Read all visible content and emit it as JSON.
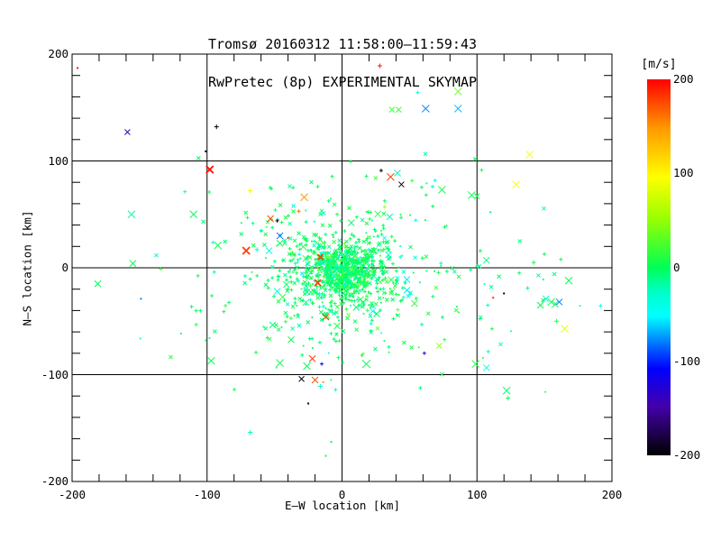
{
  "chart_data": {
    "type": "scatter",
    "title": "Tromsø 20160312 11:58:00–11:59:43",
    "subtitle": "RwPretec (8p) EXPERIMENTAL SKYMAP",
    "xlabel": "E–W location [km]",
    "ylabel": "N–S location [km]",
    "xlim": [
      -200,
      200
    ],
    "ylim": [
      -200,
      200
    ],
    "xticks": [
      -200,
      -100,
      0,
      100,
      200
    ],
    "yticks": [
      -200,
      -100,
      0,
      100,
      200
    ],
    "minor_tick_step": 20,
    "grid_values": [
      -100,
      0,
      100
    ],
    "grid_on": true,
    "background": "#ffffff",
    "axis_color": "#000000",
    "colorbar": {
      "label": "[m/s]",
      "ticks": [
        200,
        100,
        0,
        -100,
        -200
      ],
      "min": -200,
      "max": 200,
      "gradient_stops": [
        {
          "pos": 0.0,
          "color": "#ff0000"
        },
        {
          "pos": 0.13,
          "color": "#ff9900"
        },
        {
          "pos": 0.26,
          "color": "#ffff00"
        },
        {
          "pos": 0.37,
          "color": "#99ff00"
        },
        {
          "pos": 0.5,
          "color": "#00ff55"
        },
        {
          "pos": 0.57,
          "color": "#00ffcc"
        },
        {
          "pos": 0.63,
          "color": "#00ffff"
        },
        {
          "pos": 0.72,
          "color": "#0055ff"
        },
        {
          "pos": 0.77,
          "color": "#0000ff"
        },
        {
          "pos": 0.87,
          "color": "#4400aa"
        },
        {
          "pos": 1.0,
          "color": "#000000"
        }
      ]
    },
    "notable_points": [
      {
        "x": -196,
        "y": 187,
        "v": 190,
        "m": ".",
        "s": 1
      },
      {
        "x": -159,
        "y": 127,
        "v": -150,
        "m": "x",
        "s": 3
      },
      {
        "x": -93,
        "y": 132,
        "v": -200,
        "m": "+",
        "s": 2.5
      },
      {
        "x": -101,
        "y": 109,
        "v": -200,
        "m": ".",
        "s": 1
      },
      {
        "x": -98,
        "y": 92,
        "v": 195,
        "m": "x",
        "s": 4,
        "b": 1
      },
      {
        "x": 28,
        "y": 189,
        "v": 190,
        "m": "+",
        "s": 2.5
      },
      {
        "x": 86,
        "y": 165,
        "v": 45,
        "m": "x",
        "s": 4
      },
      {
        "x": 62,
        "y": 149,
        "v": -85,
        "m": "x",
        "s": 4
      },
      {
        "x": 86,
        "y": 149,
        "v": -70,
        "m": "x",
        "s": 4
      },
      {
        "x": 37,
        "y": 148,
        "v": 25,
        "m": "x",
        "s": 3
      },
      {
        "x": 42,
        "y": 148,
        "v": 25,
        "m": "x",
        "s": 3
      },
      {
        "x": 56,
        "y": 164,
        "v": -35,
        "m": "+",
        "s": 2
      },
      {
        "x": 110,
        "y": 52,
        "v": -5,
        "m": ".",
        "s": 1
      },
      {
        "x": 139,
        "y": 106,
        "v": 100,
        "m": "x",
        "s": 4
      },
      {
        "x": 129,
        "y": 78,
        "v": 95,
        "m": "x",
        "s": 4
      },
      {
        "x": 36,
        "y": 85,
        "v": 175,
        "m": "x",
        "s": 4
      },
      {
        "x": 44,
        "y": 78,
        "v": -195,
        "m": "x",
        "s": 3
      },
      {
        "x": 29,
        "y": 91,
        "v": -195,
        "m": "+",
        "s": 2
      },
      {
        "x": 74,
        "y": 73,
        "v": 10,
        "m": "x",
        "s": 4
      },
      {
        "x": 96,
        "y": 68,
        "v": 5,
        "m": "x",
        "s": 4
      },
      {
        "x": 100,
        "y": 67,
        "v": 10,
        "m": "x",
        "s": 3
      },
      {
        "x": -68,
        "y": 72,
        "v": 105,
        "m": "+",
        "s": 2.5
      },
      {
        "x": -53,
        "y": 46,
        "v": 170,
        "m": "x",
        "s": 3.5
      },
      {
        "x": -48,
        "y": 44,
        "v": -195,
        "m": "+",
        "s": 2
      },
      {
        "x": -71,
        "y": 16,
        "v": 175,
        "m": "x",
        "s": 4,
        "b": 1
      },
      {
        "x": -63,
        "y": 17,
        "v": -35,
        "m": "+",
        "s": 2.5
      },
      {
        "x": -54,
        "y": 16,
        "v": -40,
        "m": "x",
        "s": 3.5
      },
      {
        "x": -156,
        "y": 50,
        "v": -20,
        "m": "x",
        "s": 4
      },
      {
        "x": -110,
        "y": 50,
        "v": 0,
        "m": "x",
        "s": 4
      },
      {
        "x": -92,
        "y": 21,
        "v": 5,
        "m": "x",
        "s": 4
      },
      {
        "x": -155,
        "y": 4,
        "v": 0,
        "m": "x",
        "s": 3.5
      },
      {
        "x": -181,
        "y": -15,
        "v": 0,
        "m": "x",
        "s": 3.5
      },
      {
        "x": -149,
        "y": -29,
        "v": -80,
        "m": ".",
        "s": 1
      },
      {
        "x": -28,
        "y": 66,
        "v": 140,
        "m": "x",
        "s": 4
      },
      {
        "x": -18,
        "y": 76,
        "v": 10,
        "m": "+",
        "s": 2
      },
      {
        "x": -32,
        "y": 53,
        "v": 155,
        "m": "+",
        "s": 2
      },
      {
        "x": -46,
        "y": 30,
        "v": -90,
        "m": "x",
        "s": 3.5
      },
      {
        "x": -40,
        "y": 28,
        "v": 180,
        "m": ".",
        "s": 1
      },
      {
        "x": -46,
        "y": 23,
        "v": 5,
        "m": "x",
        "s": 3.5
      },
      {
        "x": -48,
        "y": -22,
        "v": -40,
        "m": "x",
        "s": 3.5
      },
      {
        "x": -18,
        "y": -14,
        "v": 175,
        "m": "x",
        "s": 3.5,
        "b": 1
      },
      {
        "x": -16,
        "y": 10,
        "v": 175,
        "m": "x",
        "s": 3,
        "b": 1
      },
      {
        "x": -12,
        "y": -46,
        "v": 175,
        "m": "x",
        "s": 3.5
      },
      {
        "x": 48,
        "y": -11,
        "v": -55,
        "m": "x",
        "s": 3.5
      },
      {
        "x": -97,
        "y": -87,
        "v": 0,
        "m": "x",
        "s": 4
      },
      {
        "x": -46,
        "y": -89,
        "v": 5,
        "m": "x",
        "s": 4
      },
      {
        "x": -26,
        "y": -92,
        "v": 0,
        "m": "x",
        "s": 4
      },
      {
        "x": -22,
        "y": -85,
        "v": 175,
        "m": "x",
        "s": 3.5
      },
      {
        "x": -15,
        "y": -90,
        "v": -130,
        "m": "+",
        "s": 2
      },
      {
        "x": 18,
        "y": -90,
        "v": 5,
        "m": "x",
        "s": 4.5
      },
      {
        "x": 61,
        "y": -80,
        "v": -140,
        "m": "+",
        "s": 2
      },
      {
        "x": 72,
        "y": -73,
        "v": 60,
        "m": "x",
        "s": 3
      },
      {
        "x": -30,
        "y": -104,
        "v": -195,
        "m": "x",
        "s": 3
      },
      {
        "x": -20,
        "y": -105,
        "v": 175,
        "m": "x",
        "s": 3.5
      },
      {
        "x": -14,
        "y": -107,
        "v": 140,
        "m": ".",
        "s": 1
      },
      {
        "x": -16,
        "y": -111,
        "v": -35,
        "m": "+",
        "s": 2.5
      },
      {
        "x": -25,
        "y": -127,
        "v": -195,
        "m": ".",
        "s": 1
      },
      {
        "x": -68,
        "y": -154,
        "v": -30,
        "m": "+",
        "s": 2.5
      },
      {
        "x": -8,
        "y": -163,
        "v": 0,
        "m": ".",
        "s": 1
      },
      {
        "x": -12,
        "y": -176,
        "v": 5,
        "m": ".",
        "s": 1
      },
      {
        "x": 112,
        "y": -28,
        "v": 180,
        "m": ".",
        "s": 1
      },
      {
        "x": 120,
        "y": -24,
        "v": -195,
        "m": ".",
        "s": 1
      },
      {
        "x": 108,
        "y": -35,
        "v": -30,
        "m": "+",
        "s": 2
      },
      {
        "x": 107,
        "y": 7,
        "v": -15,
        "m": "x",
        "s": 3.5
      },
      {
        "x": 142,
        "y": 5,
        "v": 5,
        "m": "+",
        "s": 2.5
      },
      {
        "x": 168,
        "y": -12,
        "v": 0,
        "m": "x",
        "s": 4
      },
      {
        "x": 151,
        "y": -29,
        "v": -35,
        "m": "x",
        "s": 3.5
      },
      {
        "x": 155,
        "y": -32,
        "v": 0,
        "m": "x",
        "s": 4
      },
      {
        "x": 158,
        "y": -34,
        "v": 5,
        "m": "x",
        "s": 3.5
      },
      {
        "x": 161,
        "y": -32,
        "v": -85,
        "m": "x",
        "s": 3.5
      },
      {
        "x": 147,
        "y": -35,
        "v": 0,
        "m": "x",
        "s": 3.5
      },
      {
        "x": 159,
        "y": -50,
        "v": 10,
        "m": "+",
        "s": 2.5
      },
      {
        "x": 165,
        "y": -57,
        "v": 90,
        "m": "x",
        "s": 4
      },
      {
        "x": 99,
        "y": -90,
        "v": 15,
        "m": "x",
        "s": 4
      },
      {
        "x": 122,
        "y": -115,
        "v": -10,
        "m": "x",
        "s": 4
      },
      {
        "x": 123,
        "y": -122,
        "v": 0,
        "m": "+",
        "s": 2.5
      }
    ],
    "clusters": [
      {
        "n": 560,
        "cx": 2,
        "cy": -3,
        "sx": 14,
        "sy": 13,
        "seed": 101
      },
      {
        "n": 380,
        "cx": 0,
        "cy": -6,
        "sx": 30,
        "sy": 27,
        "seed": 202
      },
      {
        "n": 175,
        "cx": -6,
        "cy": -16,
        "sx": 52,
        "sy": 50,
        "seed": 303
      },
      {
        "n": 24,
        "cx": 120,
        "cy": -28,
        "sx": 26,
        "sy": 36,
        "seed": 404
      },
      {
        "n": 34,
        "cx": -15,
        "cy": 58,
        "sx": 48,
        "sy": 26,
        "seed": 505
      }
    ],
    "velocity_mix": {
      "p_green": 0.82,
      "green_mu": 0,
      "green_sigma": 13,
      "p_cyan": 0.14,
      "cyan_mu": -38,
      "cyan_sigma": 11,
      "warm_mu": 18,
      "warm_sigma": 22
    },
    "marker_mix": {
      "plus": 0.45,
      "x": 0.34,
      "dot": 0.21,
      "big_x_prob": 0.1
    }
  }
}
